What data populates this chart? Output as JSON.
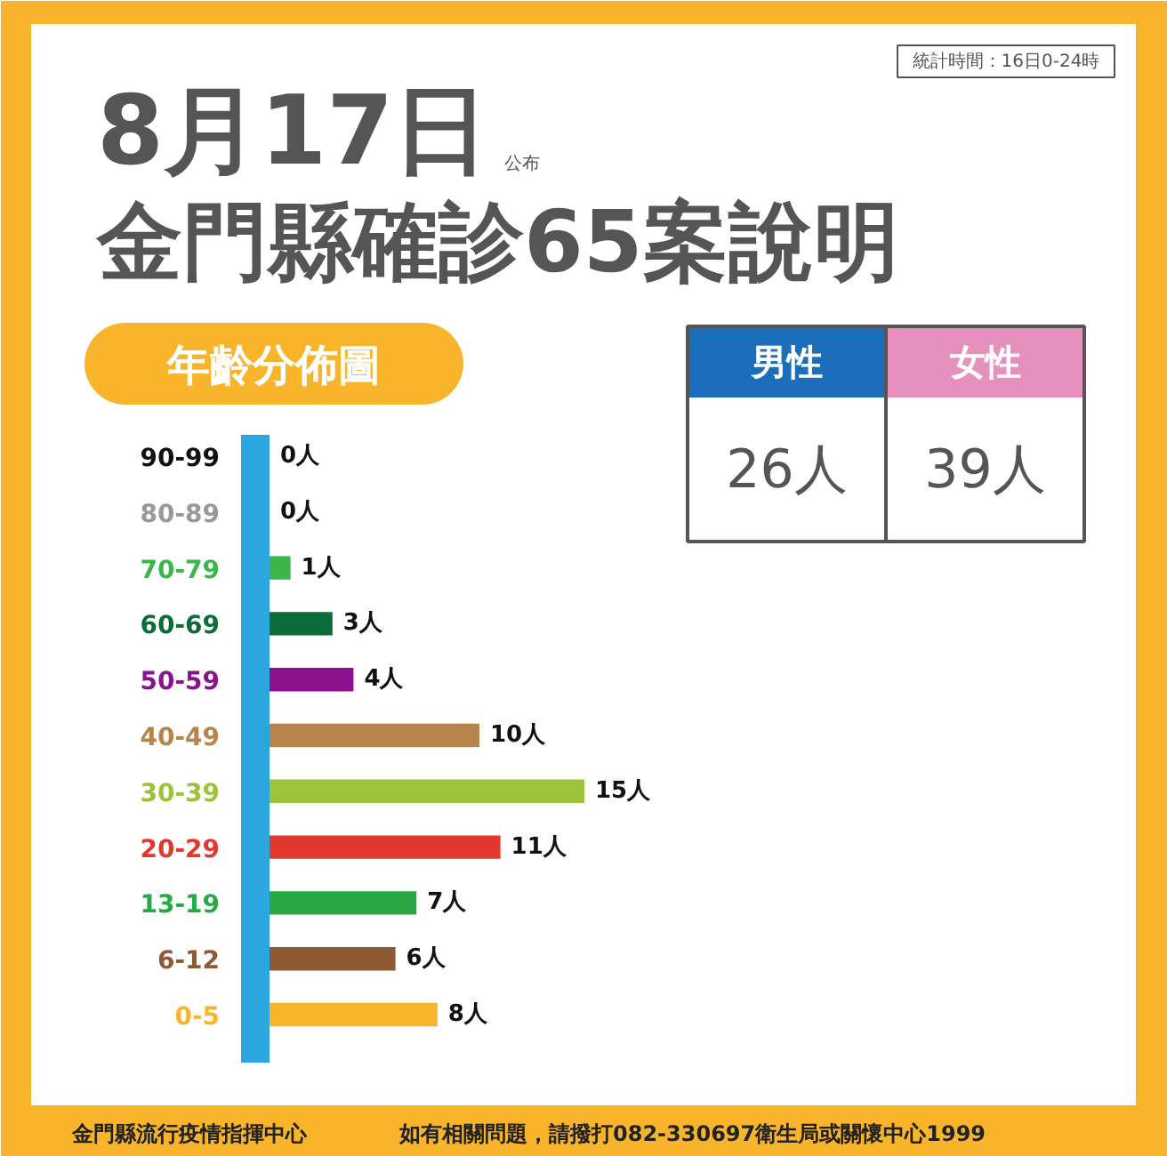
{
  "chart_data": [
    {
      "type": "bar",
      "orientation": "horizontal",
      "title": "8月17日",
      "subtitle": "金門縣確診65案說明",
      "categories": [
        "90-99",
        "80-89",
        "70-79",
        "60-69",
        "50-59",
        "40-49",
        "30-39",
        "20-29",
        "13-19",
        "6-12",
        "0-5"
      ],
      "values": [
        0,
        0,
        1,
        3,
        4,
        10,
        15,
        11,
        7,
        6,
        8
      ],
      "colors": [
        "#111111",
        "#999999",
        "#3cb54a",
        "#0b6b3a",
        "#8c118c",
        "#b5854b",
        "#9cc43a",
        "#e3382d",
        "#29a845",
        "#8e5a33",
        "#f7b52c"
      ],
      "value_labels": [
        "0人",
        "0人",
        "1人",
        "3人",
        "4人",
        "10人",
        "15人",
        "11人",
        "7人",
        "6人",
        "8人"
      ],
      "annotations": [
        "公布",
        "統計時間：16日0-24時",
        "年齡分佈圖",
        "金門縣流行疫情指揮中心",
        "如有相關問題，請撥打082-330697衛生局或關懷中心1999"
      ]
    },
    {
      "type": "other",
      "categories": [
        "男性",
        "女性"
      ],
      "colors": [
        "#1b6fba",
        "#e690be"
      ],
      "annotations": [
        "26人",
        "39人"
      ]
    }
  ]
}
